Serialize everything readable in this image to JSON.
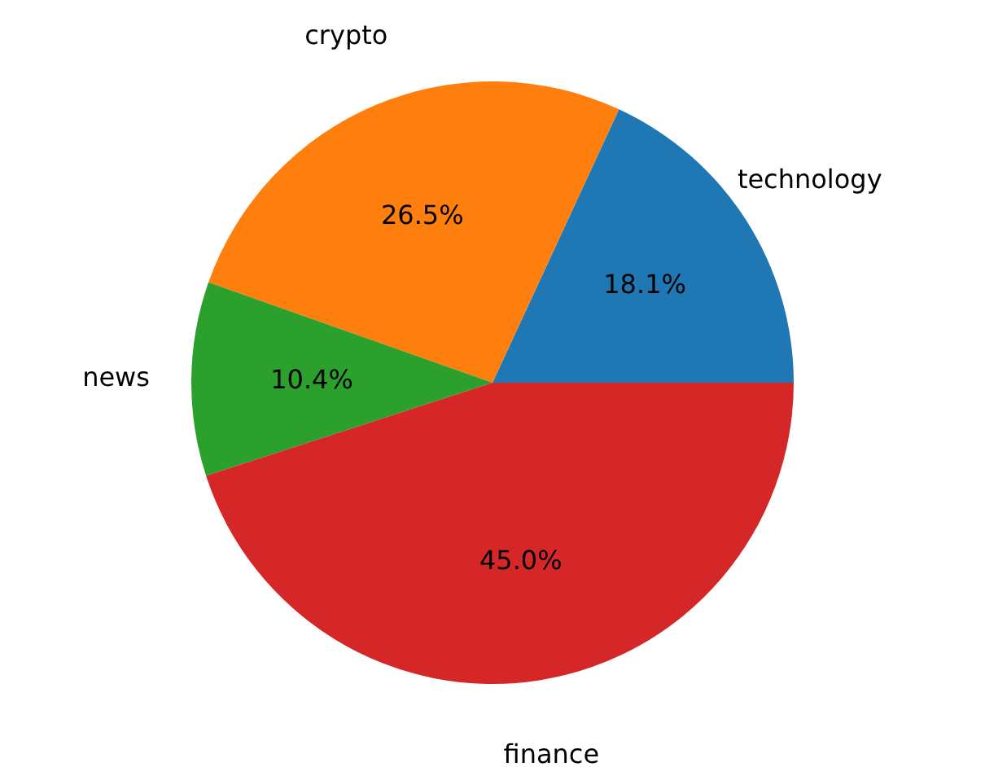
{
  "chart_data": {
    "type": "pie",
    "categories": [
      "technology",
      "crypto",
      "news",
      "finance"
    ],
    "values": [
      18.1,
      26.5,
      10.4,
      45.0
    ],
    "colors": [
      "#1f77b4",
      "#ff7f0e",
      "#2ca02c",
      "#d62728"
    ],
    "value_labels": [
      "18.1%",
      "26.5%",
      "10.4%",
      "45.0%"
    ],
    "legend": false
  }
}
